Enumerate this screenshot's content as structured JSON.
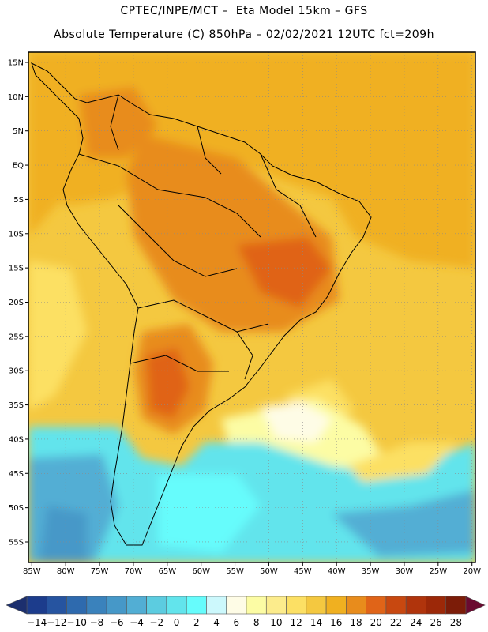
{
  "header": {
    "title_line1": "CPTEC/INPE/MCT –  Eta Model 15km – GFS",
    "title_line2": "Absolute Temperature (C) 850hPa – 02/02/2021 12UTC fct=209h"
  },
  "map": {
    "lat_labels": [
      "15N",
      "10N",
      "5N",
      "EQ",
      "5S",
      "10S",
      "15S",
      "20S",
      "25S",
      "30S",
      "35S",
      "40S",
      "45S",
      "50S",
      "55S"
    ],
    "lat_values": [
      15,
      10,
      5,
      0,
      -5,
      -10,
      -15,
      -20,
      -25,
      -30,
      -35,
      -40,
      -45,
      -50,
      -55
    ],
    "lon_labels": [
      "85W",
      "80W",
      "75W",
      "70W",
      "65W",
      "60W",
      "55W",
      "50W",
      "45W",
      "40W",
      "35W",
      "30W",
      "25W",
      "20W"
    ],
    "lon_values": [
      -85,
      -80,
      -75,
      -70,
      -65,
      -60,
      -55,
      -50,
      -45,
      -40,
      -35,
      -30,
      -25,
      -20
    ],
    "lon_range": [
      -85.5,
      -19.5
    ],
    "lat_range": [
      -58,
      16.5
    ],
    "grid": true
  },
  "colorbar": {
    "labels": [
      "-14",
      "-12",
      "-10",
      "-8",
      "-6",
      "-4",
      "-2",
      "0",
      "2",
      "4",
      "6",
      "8",
      "10",
      "12",
      "14",
      "16",
      "18",
      "20",
      "22",
      "24",
      "26",
      "28"
    ],
    "colors": [
      "#1c3c8c",
      "#2654a0",
      "#2e6aae",
      "#3a82bc",
      "#4698c8",
      "#52aed4",
      "#5ccce0",
      "#62e4ec",
      "#66fcfc",
      "#ccf8fc",
      "#fefce6",
      "#fcfca4",
      "#fcec8c",
      "#fce064",
      "#f4c840",
      "#f0b020",
      "#e88c1c",
      "#e06418",
      "#c84810",
      "#b0340c",
      "#9c2808",
      "#7c1c08"
    ],
    "units": "C"
  }
}
